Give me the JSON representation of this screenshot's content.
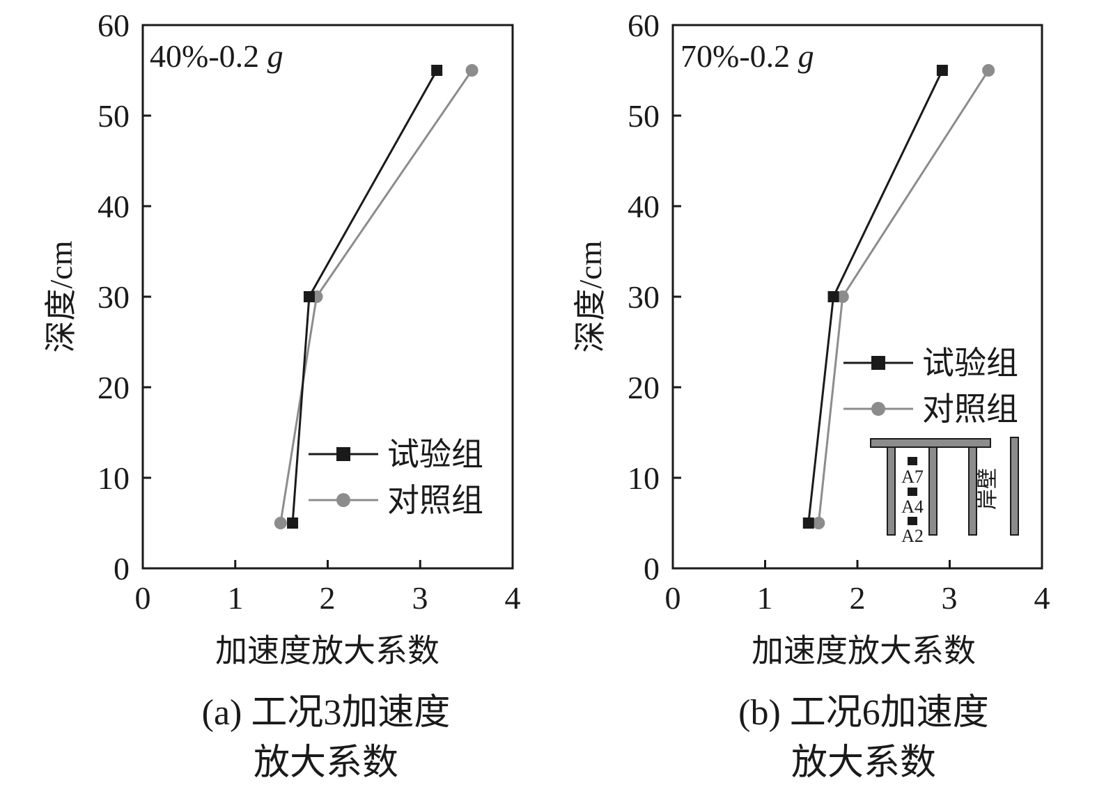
{
  "chart_data": [
    {
      "type": "line",
      "condition_label": "40%-0.2 g",
      "condition_main": "40%-0.2 ",
      "condition_unit": "g",
      "xlabel": "加速度放大系数",
      "ylabel": "深度/cm",
      "xlim": [
        0,
        4
      ],
      "ylim": [
        0,
        60
      ],
      "xticks": [
        "0",
        "1",
        "2",
        "3",
        "4"
      ],
      "yticks": [
        "0",
        "10",
        "20",
        "30",
        "40",
        "50",
        "60"
      ],
      "grid": false,
      "legend_position": "bottom-right",
      "caption_lines": [
        "(a) 工况3加速度",
        "放大系数"
      ],
      "series": [
        {
          "name": "试验组",
          "color": "#1a1a1a",
          "marker": "square",
          "x": [
            1.62,
            1.8,
            3.18
          ],
          "y": [
            5,
            30,
            55
          ]
        },
        {
          "name": "对照组",
          "color": "#8c8c8c",
          "marker": "circle",
          "x": [
            1.49,
            1.88,
            3.56
          ],
          "y": [
            5,
            30,
            55
          ]
        }
      ]
    },
    {
      "type": "line",
      "condition_label": "70%-0.2 g",
      "condition_main": "70%-0.2 ",
      "condition_unit": "g",
      "xlabel": "加速度放大系数",
      "ylabel": "深度/cm",
      "xlim": [
        0,
        4
      ],
      "ylim": [
        0,
        60
      ],
      "xticks": [
        "0",
        "1",
        "2",
        "3",
        "4"
      ],
      "yticks": [
        "0",
        "10",
        "20",
        "30",
        "40",
        "50",
        "60"
      ],
      "grid": false,
      "legend_position": "middle-right",
      "caption_lines": [
        "(b) 工况6加速度",
        "放大系数"
      ],
      "inset": {
        "sensor_labels": [
          "A7",
          "A4",
          "A2"
        ],
        "wall_label": "岸壁"
      },
      "series": [
        {
          "name": "试验组",
          "color": "#1a1a1a",
          "marker": "square",
          "x": [
            1.47,
            1.74,
            2.92
          ],
          "y": [
            5,
            30,
            55
          ]
        },
        {
          "name": "对照组",
          "color": "#8c8c8c",
          "marker": "circle",
          "x": [
            1.58,
            1.84,
            3.42
          ],
          "y": [
            5,
            30,
            55
          ]
        }
      ]
    }
  ]
}
